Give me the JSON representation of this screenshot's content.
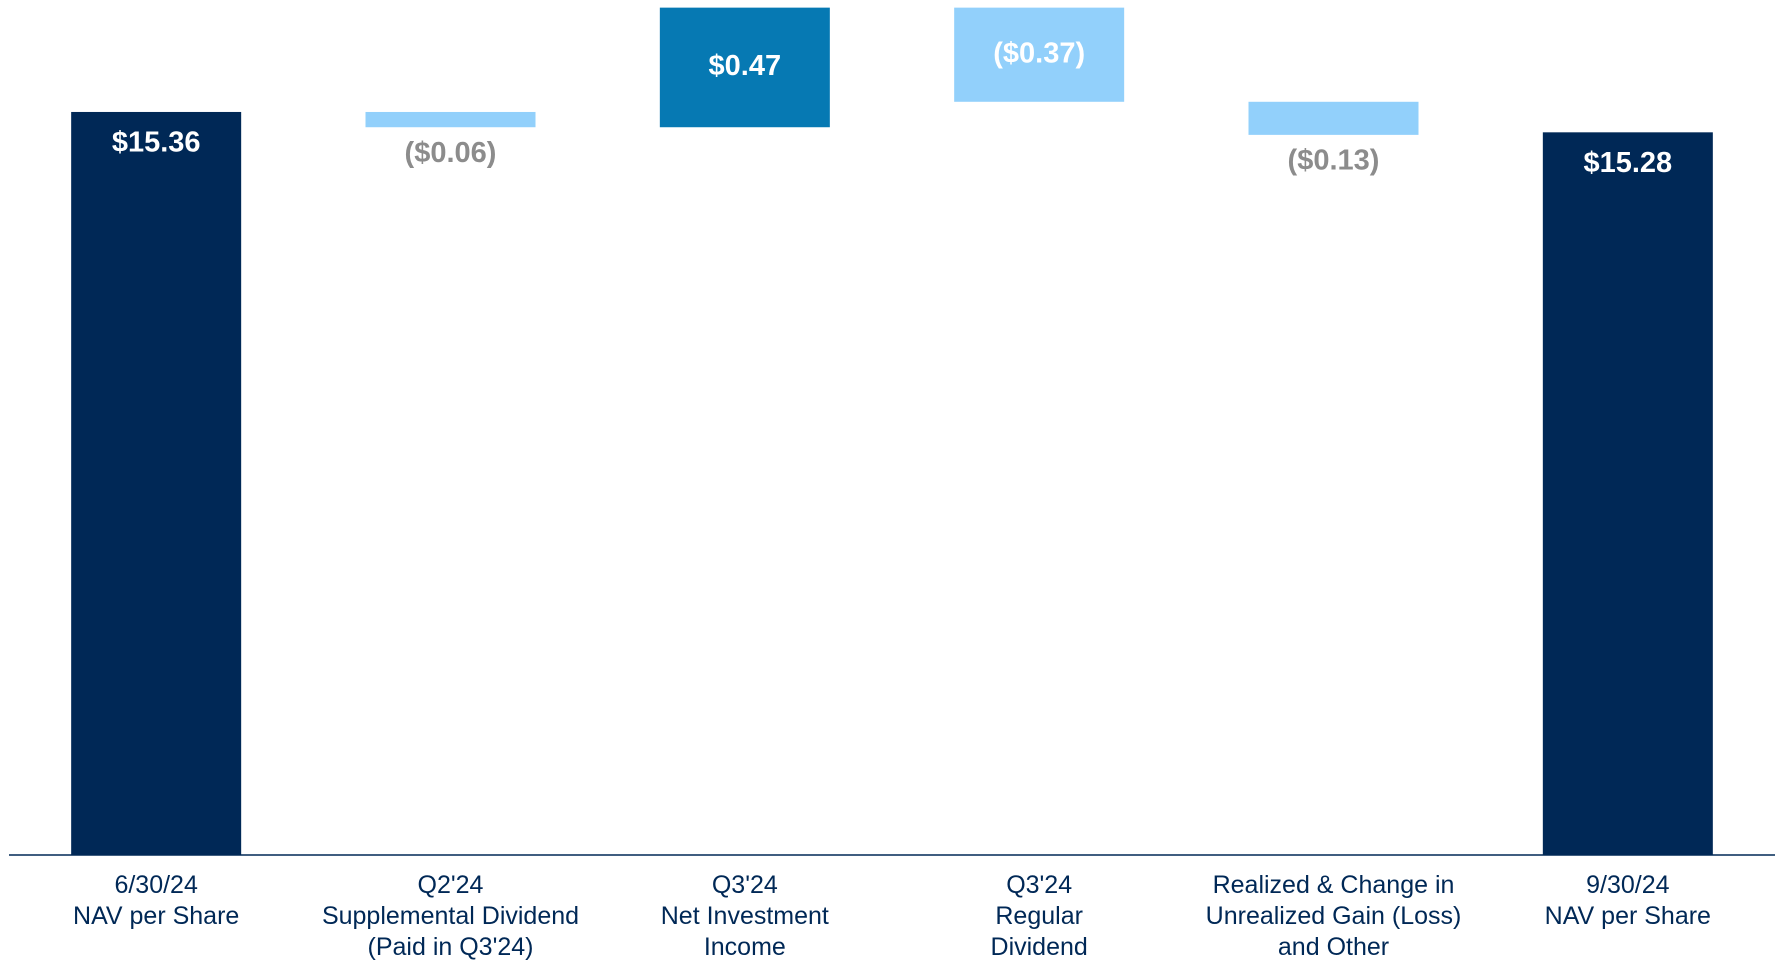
{
  "chart_data": {
    "type": "waterfall",
    "categories": [
      [
        "6/30/24",
        "NAV per Share"
      ],
      [
        "Q2'24",
        "Supplemental Dividend",
        "(Paid in Q3'24)"
      ],
      [
        "Q3'24",
        "Net Investment",
        "Income"
      ],
      [
        "Q3'24",
        "Regular",
        "Dividend"
      ],
      [
        "Realized & Change in",
        "Unrealized Gain (Loss)",
        "and Other"
      ],
      [
        "9/30/24",
        "NAV per Share"
      ]
    ],
    "measure": [
      "absolute",
      "relative",
      "relative",
      "relative",
      "relative",
      "absolute"
    ],
    "values": [
      15.36,
      -0.06,
      0.47,
      -0.37,
      -0.13,
      15.28
    ],
    "value_labels": [
      "$15.36",
      "($0.06)",
      "$0.47",
      "($0.37)",
      "($0.13)",
      "$15.28"
    ],
    "colors": {
      "total": "#002856",
      "increase": "#0679b3",
      "decrease": "#92d0fb"
    },
    "ylim": [
      12.44,
      15.8
    ]
  }
}
